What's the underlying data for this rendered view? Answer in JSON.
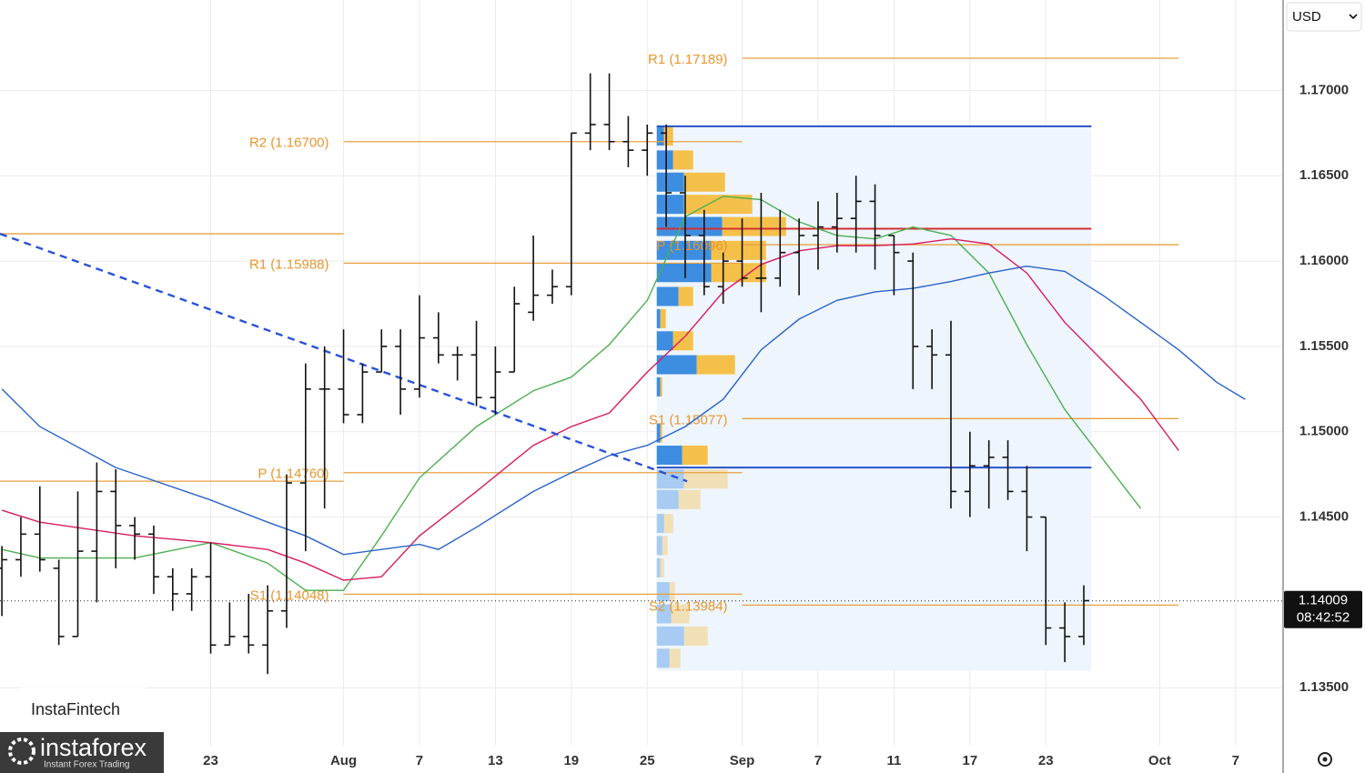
{
  "chart_data": {
    "type": "ohlc",
    "currency": "USD",
    "xlim": [
      -11.1,
      56.5
    ],
    "ylim": [
      1.1316,
      1.1753
    ],
    "grid": true,
    "xticks": [
      {
        "value": 0,
        "label": "23"
      },
      {
        "value": 7,
        "label": "Aug"
      },
      {
        "value": 11,
        "label": "7"
      },
      {
        "value": 15,
        "label": "13"
      },
      {
        "value": 19,
        "label": "19"
      },
      {
        "value": 23,
        "label": "25"
      },
      {
        "value": 28,
        "label": "Sep"
      },
      {
        "value": 32,
        "label": "7"
      },
      {
        "value": 36,
        "label": "11"
      },
      {
        "value": 40,
        "label": "17"
      },
      {
        "value": 44,
        "label": "23"
      },
      {
        "value": 50,
        "label": "Oct"
      },
      {
        "value": 54,
        "label": "7"
      }
    ],
    "yticks": [
      {
        "value": 1.135,
        "label": "1.13500"
      },
      {
        "value": 1.145,
        "label": "1.14500"
      },
      {
        "value": 1.15,
        "label": "1.15000"
      },
      {
        "value": 1.155,
        "label": "1.15500"
      },
      {
        "value": 1.16,
        "label": "1.16000"
      },
      {
        "value": 1.165,
        "label": "1.16500"
      },
      {
        "value": 1.17,
        "label": "1.17000"
      }
    ],
    "color": "#111111",
    "x": [
      -11,
      -10,
      -9,
      -8,
      -7,
      -6,
      -5,
      -4,
      -3,
      -2,
      -1,
      0,
      1,
      2,
      3,
      4,
      5,
      6,
      7,
      8,
      9,
      10,
      11,
      12,
      13,
      14,
      15,
      16,
      17,
      18,
      19,
      20,
      21,
      22,
      23,
      24,
      25,
      26,
      27,
      28,
      29,
      30,
      31,
      32,
      33,
      34,
      35,
      36,
      37,
      38,
      39,
      40,
      41,
      42,
      43,
      44,
      45,
      46
    ],
    "open": [
      1.142,
      1.1425,
      1.144,
      1.142,
      1.138,
      1.143,
      1.1465,
      1.1445,
      1.144,
      1.1415,
      1.1405,
      1.1415,
      1.1375,
      1.138,
      1.1375,
      1.1395,
      1.147,
      1.1525,
      1.1525,
      1.151,
      1.1535,
      1.155,
      1.1525,
      1.1555,
      1.1545,
      1.1545,
      1.152,
      1.1535,
      1.157,
      1.158,
      1.1585,
      1.1675,
      1.168,
      1.167,
      1.1665,
      1.1675,
      1.164,
      1.1615,
      1.1585,
      1.16,
      1.159,
      1.159,
      1.1605,
      1.1615,
      1.162,
      1.1625,
      1.1635,
      1.1615,
      1.16,
      1.155,
      1.1545,
      1.1465,
      1.148,
      1.1485,
      1.1465,
      1.145,
      1.1385,
      1.138
    ],
    "high": [
      1.1433,
      1.145,
      1.1468,
      1.1425,
      1.1465,
      1.1482,
      1.1478,
      1.145,
      1.1445,
      1.142,
      1.142,
      1.1435,
      1.14,
      1.1405,
      1.141,
      1.1475,
      1.154,
      1.155,
      1.156,
      1.154,
      1.156,
      1.156,
      1.158,
      1.157,
      1.155,
      1.1565,
      1.155,
      1.1585,
      1.1615,
      1.1595,
      1.1675,
      1.171,
      1.171,
      1.1685,
      1.168,
      1.168,
      1.165,
      1.163,
      1.1605,
      1.1625,
      1.164,
      1.163,
      1.1625,
      1.1635,
      1.164,
      1.165,
      1.1645,
      1.1615,
      1.1605,
      1.156,
      1.1565,
      1.15,
      1.1495,
      1.1495,
      1.148,
      1.145,
      1.14,
      1.141
    ],
    "low": [
      1.1392,
      1.1415,
      1.1418,
      1.1375,
      1.138,
      1.14,
      1.142,
      1.1425,
      1.1405,
      1.1395,
      1.1395,
      1.137,
      1.1375,
      1.137,
      1.1358,
      1.1385,
      1.143,
      1.1455,
      1.1505,
      1.1505,
      1.1535,
      1.151,
      1.152,
      1.154,
      1.153,
      1.1515,
      1.151,
      1.1535,
      1.1565,
      1.1575,
      1.158,
      1.1665,
      1.1665,
      1.1655,
      1.165,
      1.162,
      1.159,
      1.158,
      1.1575,
      1.1585,
      1.157,
      1.1585,
      1.158,
      1.1595,
      1.1605,
      1.1605,
      1.1595,
      1.158,
      1.1525,
      1.1525,
      1.1455,
      1.145,
      1.1455,
      1.146,
      1.143,
      1.1375,
      1.1365,
      1.1375
    ],
    "close": [
      1.1425,
      1.144,
      1.1425,
      1.138,
      1.143,
      1.1465,
      1.1445,
      1.144,
      1.1415,
      1.1405,
      1.1415,
      1.1375,
      1.138,
      1.1375,
      1.1395,
      1.147,
      1.1525,
      1.1525,
      1.151,
      1.1535,
      1.155,
      1.1525,
      1.1555,
      1.1545,
      1.1545,
      1.152,
      1.1535,
      1.1575,
      1.158,
      1.1585,
      1.1675,
      1.168,
      1.167,
      1.1665,
      1.1675,
      1.164,
      1.1615,
      1.1585,
      1.16,
      1.159,
      1.159,
      1.1605,
      1.1615,
      1.162,
      1.1625,
      1.1635,
      1.1615,
      1.1605,
      1.155,
      1.1545,
      1.1465,
      1.148,
      1.1485,
      1.1465,
      1.145,
      1.1385,
      1.138,
      1.1401
    ],
    "moving_averages": [
      {
        "color": "#4caf50",
        "x": [
          -11,
          -9,
          -4,
          0,
          3,
          5,
          7,
          9,
          11,
          14,
          17,
          19,
          21,
          23,
          25,
          27,
          29,
          31,
          33,
          35,
          37,
          39,
          41,
          43,
          45,
          49
        ],
        "values": [
          1.1431,
          1.1426,
          1.1426,
          1.1435,
          1.1423,
          1.1407,
          1.1407,
          1.1439,
          1.1473,
          1.1503,
          1.1524,
          1.1532,
          1.1551,
          1.1577,
          1.1626,
          1.1638,
          1.1636,
          1.1623,
          1.1615,
          1.1613,
          1.162,
          1.1615,
          1.1593,
          1.1551,
          1.1513,
          1.1455
        ]
      },
      {
        "color": "#d81b60",
        "x": [
          -11,
          -9,
          -4,
          0,
          3,
          5,
          7,
          9,
          11,
          14,
          17,
          19,
          21,
          23,
          25,
          27,
          29,
          31,
          33,
          35,
          37,
          39,
          41,
          43,
          45,
          49,
          51
        ],
        "values": [
          1.1454,
          1.1447,
          1.1439,
          1.1435,
          1.1431,
          1.1423,
          1.1413,
          1.1415,
          1.1439,
          1.1465,
          1.1492,
          1.1503,
          1.1511,
          1.1535,
          1.1556,
          1.1582,
          1.1598,
          1.1606,
          1.1609,
          1.1609,
          1.161,
          1.1613,
          1.161,
          1.1593,
          1.1564,
          1.1519,
          1.1489
        ]
      },
      {
        "color": "#2962c8",
        "x": [
          -11,
          -9,
          -5,
          0,
          3,
          5,
          7,
          11,
          12,
          14,
          17,
          19,
          21,
          23,
          25,
          27,
          29,
          31,
          33,
          35,
          37,
          39,
          41,
          43,
          45,
          47,
          49,
          51,
          53,
          54.5
        ],
        "values": [
          1.1525,
          1.1503,
          1.1479,
          1.146,
          1.1447,
          1.1439,
          1.1428,
          1.1434,
          1.1431,
          1.1444,
          1.1465,
          1.1476,
          1.1486,
          1.1492,
          1.1503,
          1.1519,
          1.1548,
          1.1566,
          1.1577,
          1.1582,
          1.1584,
          1.1588,
          1.1593,
          1.1597,
          1.1594,
          1.158,
          1.1564,
          1.1548,
          1.1529,
          1.1519
        ]
      }
    ],
    "levels": [
      {
        "label": "R2 (1.16700)",
        "value": 1.167,
        "x0": 7,
        "x1": 28
      },
      {
        "label": "R1 (1.15988)",
        "value": 1.15988,
        "x0": 7,
        "x1": 28
      },
      {
        "label": "P (1.14760)",
        "value": 1.1476,
        "x0": 7,
        "x1": 28
      },
      {
        "label": "S1 (1.14048)",
        "value": 1.14048,
        "x0": 7,
        "x1": 28
      },
      {
        "label": "R1 (1.17189)",
        "value": 1.17189,
        "x0": 28,
        "x1": 51
      },
      {
        "label": "P (1.16096)",
        "value": 1.16096,
        "x0": 28,
        "x1": 51
      },
      {
        "label": "S1 (1.15077)",
        "value": 1.15077,
        "x0": 28,
        "x1": 51
      },
      {
        "label": "S2 (1.13984)",
        "value": 1.13984,
        "x0": 28,
        "x1": 51
      }
    ],
    "level_color": "#e8a040",
    "lines": [
      {
        "value": 1.1616,
        "x0": -11.1,
        "x1": 7,
        "color": "#e8a040"
      },
      {
        "value": 1.1471,
        "x0": -11.1,
        "x1": 7,
        "color": "#e8a040"
      },
      {
        "value": 1.1679,
        "x0": 23.5,
        "x1": 46.4,
        "color": "#2952c8"
      },
      {
        "value": 1.1479,
        "x0": 23.5,
        "x1": 46.4,
        "color": "#2952c8"
      },
      {
        "value": 1.1619,
        "x0": 23.5,
        "x1": 46.4,
        "color": "#d32f2f"
      }
    ],
    "trend_line": {
      "color": "#2952d8",
      "dashed": true,
      "x": [
        -11.1,
        25.1
      ],
      "values": [
        1.1616,
        1.1471
      ]
    },
    "volume_profile": {
      "x0": 23.5,
      "x1": 46.4,
      "top": 1.1679,
      "bottom": 1.136,
      "buy_color": "#3d8de0",
      "sell_color": "#f5c04a",
      "rows": [
        {
          "price": 1.1673,
          "buy": 8,
          "sell": 10
        },
        {
          "price": 1.1659,
          "buy": 18,
          "sell": 22
        },
        {
          "price": 1.1646,
          "buy": 30,
          "sell": 45
        },
        {
          "price": 1.1633,
          "buy": 30,
          "sell": 75
        },
        {
          "price": 1.162,
          "buy": 72,
          "sell": 70
        },
        {
          "price": 1.1606,
          "buy": 60,
          "sell": 60
        },
        {
          "price": 1.1593,
          "buy": 60,
          "sell": 60
        },
        {
          "price": 1.1579,
          "buy": 24,
          "sell": 16
        },
        {
          "price": 1.1566,
          "buy": 4,
          "sell": 6
        },
        {
          "price": 1.1553,
          "buy": 18,
          "sell": 22
        },
        {
          "price": 1.1539,
          "buy": 44,
          "sell": 42
        },
        {
          "price": 1.1526,
          "buy": 4,
          "sell": 2
        },
        {
          "price": 1.1499,
          "buy": 4,
          "sell": 2
        },
        {
          "price": 1.1486,
          "buy": 28,
          "sell": 28
        },
        {
          "price": 1.1472,
          "buy": 30,
          "sell": 48
        },
        {
          "price": 1.146,
          "buy": 24,
          "sell": 24
        },
        {
          "price": 1.1446,
          "buy": 8,
          "sell": 10
        },
        {
          "price": 1.1433,
          "buy": 6,
          "sell": 6
        },
        {
          "price": 1.142,
          "buy": 4,
          "sell": 4
        },
        {
          "price": 1.1406,
          "buy": 14,
          "sell": 6
        },
        {
          "price": 1.1393,
          "buy": 16,
          "sell": 20
        },
        {
          "price": 1.138,
          "buy": 30,
          "sell": 26
        },
        {
          "price": 1.1367,
          "buy": 14,
          "sell": 12
        }
      ]
    },
    "last_price": {
      "value": 1.14009,
      "label": "1.14009",
      "countdown": "08:42:52"
    }
  },
  "branding": {
    "watermark": "InstaFintech",
    "logo": "instaforex",
    "tagline": "Instant Forex Trading"
  }
}
